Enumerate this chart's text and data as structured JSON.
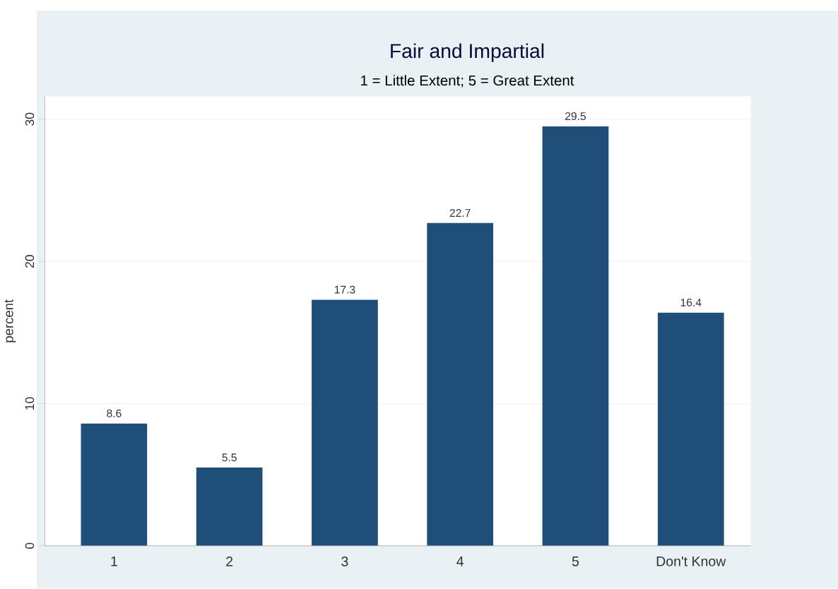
{
  "chart_data": {
    "type": "bar",
    "title": "Fair and Impartial",
    "subtitle": "1 = Little Extent; 5 = Great Extent",
    "ylabel": "percent",
    "categories": [
      "1",
      "2",
      "3",
      "4",
      "5",
      "Don't Know"
    ],
    "values": [
      8.6,
      5.5,
      17.3,
      22.7,
      29.5,
      16.4
    ],
    "color": "#1f4e79",
    "ylim": [
      0,
      31.6
    ],
    "yticks": [
      0,
      10,
      20,
      30
    ],
    "grid": "y",
    "data_labels": true
  }
}
